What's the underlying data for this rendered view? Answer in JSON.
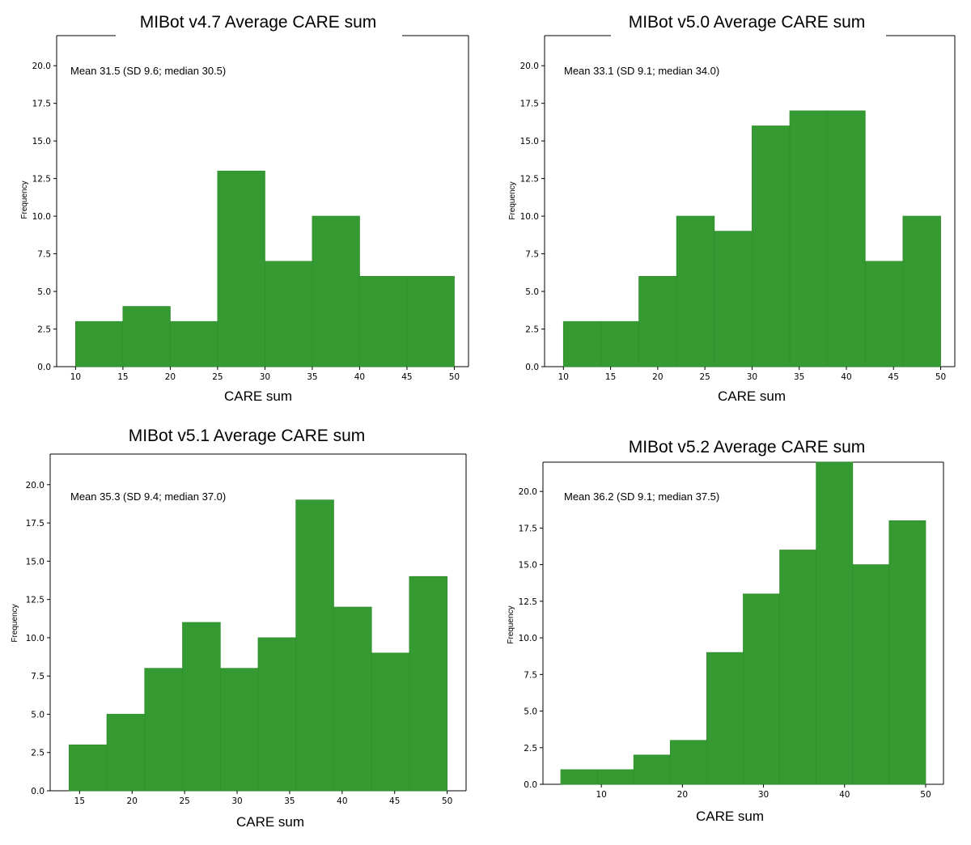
{
  "chart_data": [
    {
      "type": "bar",
      "title": "MIBot v4.7 Average CARE sum",
      "xlabel": "CARE sum",
      "ylabel": "Frequency",
      "annotation": "Mean 31.5 (SD 9.6; median 30.5)",
      "bin_edges": [
        10,
        15,
        20,
        25,
        30,
        35,
        40,
        45,
        50
      ],
      "values": [
        3,
        4,
        3,
        13,
        7,
        10,
        6,
        6
      ],
      "xlim": [
        8,
        51.5
      ],
      "ylim": [
        0,
        22
      ],
      "xticks": [
        10,
        15,
        20,
        25,
        30,
        35,
        40,
        45,
        50
      ],
      "xtick_labels": [
        "10",
        "15",
        "20",
        "25",
        "30",
        "35",
        "40",
        "45",
        "50"
      ],
      "yticks": [
        0,
        2.5,
        5,
        7.5,
        10,
        12.5,
        15,
        17.5,
        20
      ],
      "ytick_labels": [
        "0.0",
        "2.5",
        "5.0",
        "7.5",
        "10.0",
        "12.5",
        "15.0",
        "17.5",
        "20.0"
      ],
      "grid": false
    },
    {
      "type": "bar",
      "title": "MIBot v5.0 Average CARE sum",
      "xlabel": "CARE sum",
      "ylabel": "Frequency",
      "annotation": "Mean 33.1 (SD 9.1; median 34.0)",
      "bin_edges": [
        10,
        14,
        18,
        22,
        26,
        30,
        34,
        38,
        42,
        46,
        50
      ],
      "values": [
        3,
        3,
        6,
        10,
        9,
        16,
        17,
        17,
        7,
        10
      ],
      "xlim": [
        8,
        51.5
      ],
      "ylim": [
        0,
        22
      ],
      "xticks": [
        10,
        15,
        20,
        25,
        30,
        35,
        40,
        45,
        50
      ],
      "xtick_labels": [
        "10",
        "15",
        "20",
        "25",
        "30",
        "35",
        "40",
        "45",
        "50"
      ],
      "yticks": [
        0,
        2.5,
        5,
        7.5,
        10,
        12.5,
        15,
        17.5,
        20
      ],
      "ytick_labels": [
        "0.0",
        "2.5",
        "5.0",
        "7.5",
        "10.0",
        "12.5",
        "15.0",
        "17.5",
        "20.0"
      ],
      "grid": false
    },
    {
      "type": "bar",
      "title": "MIBot v5.1 Average CARE sum",
      "xlabel": "CARE sum",
      "ylabel": "Frequency",
      "annotation": "Mean 35.3 (SD 9.4; median 37.0)",
      "bin_edges": [
        14,
        17.6,
        21.2,
        24.8,
        28.4,
        32,
        35.6,
        39.2,
        42.8,
        46.4,
        50
      ],
      "values": [
        3,
        5,
        8,
        11,
        8,
        10,
        19,
        12,
        9,
        14
      ],
      "xlim": [
        12.2,
        51.8
      ],
      "ylim": [
        0,
        22
      ],
      "xticks": [
        15,
        20,
        25,
        30,
        35,
        40,
        45,
        50
      ],
      "xtick_labels": [
        "15",
        "20",
        "25",
        "30",
        "35",
        "40",
        "45",
        "50"
      ],
      "yticks": [
        0,
        2.5,
        5,
        7.5,
        10,
        12.5,
        15,
        17.5,
        20
      ],
      "ytick_labels": [
        "0.0",
        "2.5",
        "5.0",
        "7.5",
        "10.0",
        "12.5",
        "15.0",
        "17.5",
        "20.0"
      ],
      "grid": false
    },
    {
      "type": "bar",
      "title": "MIBot v5.2 Average CARE sum",
      "xlabel": "CARE sum",
      "ylabel": "Frequency",
      "annotation": "Mean 36.2 (SD 9.1; median 37.5)",
      "bin_edges": [
        5,
        9.5,
        14,
        18.5,
        23,
        27.5,
        32,
        36.5,
        41,
        45.5,
        50
      ],
      "values": [
        1,
        1,
        2,
        3,
        9,
        13,
        16,
        22,
        15,
        18
      ],
      "xlim": [
        2.8,
        52.2
      ],
      "ylim": [
        0,
        22
      ],
      "xticks": [
        10,
        20,
        30,
        40,
        50
      ],
      "xtick_labels": [
        "10",
        "20",
        "30",
        "40",
        "50"
      ],
      "yticks": [
        0,
        2.5,
        5,
        7.5,
        10,
        12.5,
        15,
        17.5,
        20
      ],
      "ytick_labels": [
        "0.0",
        "2.5",
        "5.0",
        "7.5",
        "10.0",
        "12.5",
        "15.0",
        "17.5",
        "20.0"
      ],
      "grid": false
    }
  ]
}
